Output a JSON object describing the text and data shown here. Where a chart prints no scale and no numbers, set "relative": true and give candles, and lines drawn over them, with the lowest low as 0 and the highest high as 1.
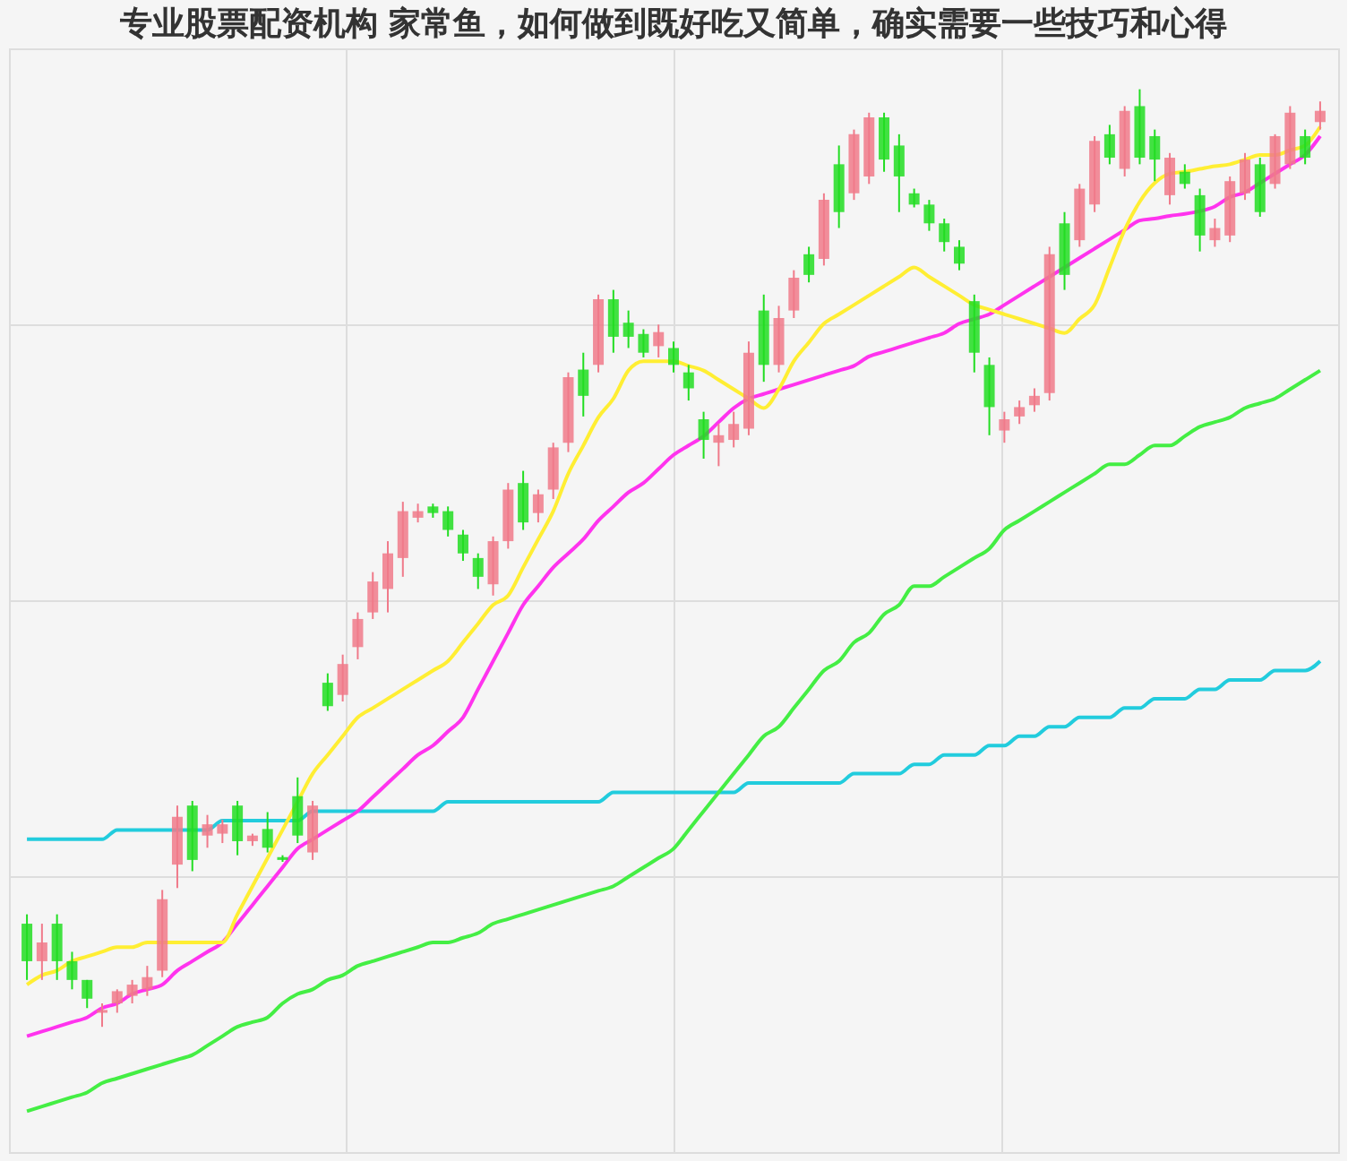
{
  "chart_data": {
    "type": "candlestick",
    "title": "专业股票配资机构 家常鱼，如何做到既好吃又简单，确实需要一些技巧和心得",
    "relative": true,
    "grid": true,
    "categories": [
      null,
      null,
      null,
      null,
      null,
      null,
      null,
      null,
      null,
      null,
      null,
      null,
      null,
      null,
      null,
      null,
      null,
      null,
      null,
      null,
      null,
      null,
      null,
      null,
      null,
      null,
      null,
      null,
      null,
      null,
      null,
      null,
      null,
      null,
      null,
      null,
      null,
      null,
      null,
      null,
      null,
      null,
      null,
      null,
      null,
      null,
      null,
      null,
      null,
      null,
      null,
      null,
      null,
      null,
      null,
      null,
      null,
      null,
      null,
      null,
      null,
      null,
      null,
      null,
      null,
      null,
      null,
      null,
      null,
      null,
      null,
      null,
      null,
      null,
      null,
      null,
      null,
      null,
      null,
      null,
      null,
      null,
      null,
      null,
      null,
      null,
      null
    ],
    "ohlc": [
      [
        0.11,
        0.12,
        0.05,
        0.07
      ],
      [
        0.07,
        0.11,
        0.05,
        0.09
      ],
      [
        0.11,
        0.12,
        0.05,
        0.07
      ],
      [
        0.07,
        0.08,
        0.04,
        0.05
      ],
      [
        0.05,
        0.05,
        0.02,
        0.03
      ],
      [
        0.015,
        0.025,
        0,
        0.018
      ],
      [
        0.025,
        0.04,
        0.015,
        0.038
      ],
      [
        0.033,
        0.05,
        0.025,
        0.045
      ],
      [
        0.04,
        0.065,
        0.033,
        0.053
      ],
      [
        0.06,
        0.146,
        0.053,
        0.136
      ],
      [
        0.173,
        0.236,
        0.148,
        0.224
      ],
      [
        0.236,
        0.241,
        0.166,
        0.178
      ],
      [
        0.204,
        0.226,
        0.191,
        0.216
      ],
      [
        0.206,
        0.221,
        0.196,
        0.216
      ],
      [
        0.236,
        0.241,
        0.183,
        0.198
      ],
      [
        0.198,
        0.206,
        0.193,
        0.204
      ],
      [
        0.211,
        0.229,
        0.186,
        0.191
      ],
      [
        0.181,
        0.183,
        0.176,
        0.178
      ],
      [
        0.246,
        0.266,
        0.196,
        0.204
      ],
      [
        0.186,
        0.241,
        0.178,
        0.236
      ],
      [
        0.367,
        0.377,
        0.337,
        0.342
      ],
      [
        0.354,
        0.397,
        0.347,
        0.387
      ],
      [
        0.405,
        0.442,
        0.392,
        0.435
      ],
      [
        0.442,
        0.485,
        0.435,
        0.475
      ],
      [
        0.467,
        0.518,
        0.442,
        0.505
      ],
      [
        0.5,
        0.56,
        0.48,
        0.55
      ],
      [
        0.543,
        0.558,
        0.538,
        0.55
      ],
      [
        0.555,
        0.558,
        0.543,
        0.548
      ],
      [
        0.55,
        0.555,
        0.523,
        0.53
      ],
      [
        0.525,
        0.53,
        0.497,
        0.505
      ],
      [
        0.5,
        0.505,
        0.467,
        0.48
      ],
      [
        0.472,
        0.523,
        0.46,
        0.518
      ],
      [
        0.518,
        0.58,
        0.51,
        0.573
      ],
      [
        0.58,
        0.593,
        0.53,
        0.538
      ],
      [
        0.548,
        0.573,
        0.538,
        0.568
      ],
      [
        0.573,
        0.623,
        0.563,
        0.618
      ],
      [
        0.623,
        0.698,
        0.613,
        0.693
      ],
      [
        0.701,
        0.719,
        0.651,
        0.673
      ],
      [
        0.706,
        0.781,
        0.698,
        0.776
      ],
      [
        0.776,
        0.786,
        0.719,
        0.736
      ],
      [
        0.751,
        0.764,
        0.724,
        0.736
      ],
      [
        0.739,
        0.744,
        0.714,
        0.719
      ],
      [
        0.726,
        0.749,
        0.714,
        0.741
      ],
      [
        0.724,
        0.731,
        0.698,
        0.706
      ],
      [
        0.698,
        0.706,
        0.668,
        0.681
      ],
      [
        0.648,
        0.656,
        0.606,
        0.626
      ],
      [
        0.623,
        0.643,
        0.598,
        0.631
      ],
      [
        0.626,
        0.656,
        0.618,
        0.643
      ],
      [
        0.638,
        0.731,
        0.631,
        0.719
      ],
      [
        0.764,
        0.781,
        0.688,
        0.706
      ],
      [
        0.706,
        0.769,
        0.698,
        0.756
      ],
      [
        0.764,
        0.807,
        0.756,
        0.799
      ],
      [
        0.824,
        0.832,
        0.794,
        0.802
      ],
      [
        0.819,
        0.889,
        0.812,
        0.882
      ],
      [
        0.92,
        0.94,
        0.852,
        0.869
      ],
      [
        0.889,
        0.957,
        0.882,
        0.952
      ],
      [
        0.907,
        0.975,
        0.899,
        0.97
      ],
      [
        0.97,
        0.975,
        0.912,
        0.925
      ],
      [
        0.94,
        0.952,
        0.869,
        0.907
      ],
      [
        0.889,
        0.894,
        0.874,
        0.877
      ],
      [
        0.877,
        0.882,
        0.849,
        0.857
      ],
      [
        0.857,
        0.862,
        0.827,
        0.837
      ],
      [
        0.832,
        0.839,
        0.807,
        0.814
      ],
      [
        0.774,
        0.781,
        0.698,
        0.719
      ],
      [
        0.706,
        0.714,
        0.631,
        0.661
      ],
      [
        0.636,
        0.656,
        0.623,
        0.648
      ],
      [
        0.651,
        0.668,
        0.643,
        0.661
      ],
      [
        0.663,
        0.681,
        0.656,
        0.673
      ],
      [
        0.676,
        0.832,
        0.668,
        0.824
      ],
      [
        0.857,
        0.869,
        0.786,
        0.802
      ],
      [
        0.839,
        0.899,
        0.832,
        0.894
      ],
      [
        0.877,
        0.95,
        0.869,
        0.945
      ],
      [
        0.952,
        0.962,
        0.92,
        0.927
      ],
      [
        0.915,
        0.982,
        0.907,
        0.977
      ],
      [
        0.982,
        1,
        0.92,
        0.927
      ],
      [
        0.95,
        0.957,
        0.902,
        0.925
      ],
      [
        0.887,
        0.932,
        0.877,
        0.927
      ],
      [
        0.912,
        0.92,
        0.894,
        0.899
      ],
      [
        0.887,
        0.894,
        0.827,
        0.844
      ],
      [
        0.839,
        0.862,
        0.832,
        0.852
      ],
      [
        0.844,
        0.907,
        0.837,
        0.902
      ],
      [
        0.889,
        0.932,
        0.882,
        0.925
      ],
      [
        0.92,
        0.927,
        0.864,
        0.869
      ],
      [
        0.899,
        0.952,
        0.894,
        0.95
      ],
      [
        0.92,
        0.982,
        0.915,
        0.975
      ],
      [
        0.95,
        0.957,
        0.92,
        0.927
      ],
      [
        0.965,
        0.987,
        0.957,
        0.977
      ]
    ],
    "colors": [
      "#22dd22",
      "#f07a8a",
      "#22dd22",
      "#22dd22",
      "#22dd22",
      "#f07a8a",
      "#f07a8a",
      "#f07a8a",
      "#f07a8a",
      "#f07a8a",
      "#f07a8a",
      "#22dd22",
      "#f07a8a",
      "#f07a8a",
      "#22dd22",
      "#f07a8a",
      "#22dd22",
      "#22dd22",
      "#22dd22",
      "#f07a8a",
      "#22dd22",
      "#f07a8a",
      "#f07a8a",
      "#f07a8a",
      "#f07a8a",
      "#f07a8a",
      "#f07a8a",
      "#22dd22",
      "#22dd22",
      "#22dd22",
      "#22dd22",
      "#f07a8a",
      "#f07a8a",
      "#22dd22",
      "#f07a8a",
      "#f07a8a",
      "#f07a8a",
      "#22dd22",
      "#f07a8a",
      "#22dd22",
      "#22dd22",
      "#22dd22",
      "#f07a8a",
      "#22dd22",
      "#22dd22",
      "#22dd22",
      "#f07a8a",
      "#f07a8a",
      "#f07a8a",
      "#22dd22",
      "#f07a8a",
      "#f07a8a",
      "#22dd22",
      "#f07a8a",
      "#22dd22",
      "#f07a8a",
      "#f07a8a",
      "#22dd22",
      "#22dd22",
      "#22dd22",
      "#22dd22",
      "#22dd22",
      "#22dd22",
      "#22dd22",
      "#22dd22",
      "#f07a8a",
      "#f07a8a",
      "#f07a8a",
      "#f07a8a",
      "#22dd22",
      "#f07a8a",
      "#f07a8a",
      "#22dd22",
      "#f07a8a",
      "#22dd22",
      "#22dd22",
      "#f07a8a",
      "#22dd22",
      "#22dd22",
      "#f07a8a",
      "#f07a8a",
      "#f07a8a",
      "#22dd22",
      "#f07a8a",
      "#f07a8a",
      "#22dd22",
      "#f07a8a"
    ],
    "series": [
      {
        "type": "line",
        "color": "#22ccdd",
        "values": [
          0.2,
          0.2,
          0.2,
          0.2,
          0.2,
          0.2,
          0.21,
          0.21,
          0.21,
          0.21,
          0.21,
          0.21,
          0.21,
          0.22,
          0.22,
          0.22,
          0.22,
          0.22,
          0.22,
          0.23,
          0.23,
          0.23,
          0.23,
          0.23,
          0.23,
          0.23,
          0.23,
          0.23,
          0.24,
          0.24,
          0.24,
          0.24,
          0.24,
          0.24,
          0.24,
          0.24,
          0.24,
          0.24,
          0.24,
          0.25,
          0.25,
          0.25,
          0.25,
          0.25,
          0.25,
          0.25,
          0.25,
          0.25,
          0.26,
          0.26,
          0.26,
          0.26,
          0.26,
          0.26,
          0.26,
          0.27,
          0.27,
          0.27,
          0.27,
          0.28,
          0.28,
          0.29,
          0.29,
          0.29,
          0.3,
          0.3,
          0.31,
          0.31,
          0.32,
          0.32,
          0.33,
          0.33,
          0.33,
          0.34,
          0.34,
          0.35,
          0.35,
          0.35,
          0.36,
          0.36,
          0.37,
          0.37,
          0.37,
          0.38,
          0.38,
          0.38,
          0.39
        ]
      },
      {
        "type": "line",
        "color": "#44ee44",
        "values": [
          -0.09,
          -0.085,
          -0.08,
          -0.075,
          -0.07,
          -0.06,
          -0.055,
          -0.05,
          -0.045,
          -0.04,
          -0.035,
          -0.03,
          -0.02,
          -0.01,
          0,
          0.005,
          0.01,
          0.025,
          0.035,
          0.04,
          0.05,
          0.055,
          0.065,
          0.07,
          0.075,
          0.08,
          0.085,
          0.09,
          0.09,
          0.095,
          0.1,
          0.11,
          0.115,
          0.12,
          0.125,
          0.13,
          0.135,
          0.14,
          0.145,
          0.15,
          0.16,
          0.17,
          0.18,
          0.19,
          0.21,
          0.23,
          0.25,
          0.27,
          0.29,
          0.31,
          0.32,
          0.34,
          0.36,
          0.38,
          0.39,
          0.41,
          0.42,
          0.44,
          0.45,
          0.47,
          0.47,
          0.48,
          0.49,
          0.5,
          0.51,
          0.53,
          0.54,
          0.55,
          0.56,
          0.57,
          0.58,
          0.59,
          0.6,
          0.6,
          0.61,
          0.62,
          0.62,
          0.63,
          0.64,
          0.645,
          0.65,
          0.66,
          0.665,
          0.67,
          0.68,
          0.69,
          0.7
        ]
      },
      {
        "type": "line",
        "color": "#ff33ee",
        "values": [
          -0.01,
          -0.005,
          0,
          0.005,
          0.01,
          0.02,
          0.025,
          0.035,
          0.04,
          0.045,
          0.06,
          0.07,
          0.08,
          0.09,
          0.11,
          0.13,
          0.15,
          0.17,
          0.19,
          0.2,
          0.21,
          0.22,
          0.23,
          0.245,
          0.26,
          0.275,
          0.29,
          0.3,
          0.315,
          0.33,
          0.36,
          0.39,
          0.42,
          0.45,
          0.47,
          0.49,
          0.505,
          0.52,
          0.54,
          0.555,
          0.57,
          0.58,
          0.595,
          0.61,
          0.62,
          0.63,
          0.645,
          0.66,
          0.67,
          0.675,
          0.68,
          0.685,
          0.69,
          0.695,
          0.7,
          0.705,
          0.715,
          0.72,
          0.725,
          0.73,
          0.735,
          0.74,
          0.75,
          0.755,
          0.76,
          0.77,
          0.78,
          0.79,
          0.8,
          0.81,
          0.82,
          0.83,
          0.84,
          0.85,
          0.86,
          0.862,
          0.865,
          0.867,
          0.87,
          0.875,
          0.885,
          0.89,
          0.9,
          0.91,
          0.92,
          0.93,
          0.95
        ]
      },
      {
        "type": "line",
        "color": "#ffee33",
        "values": [
          0.045,
          0.055,
          0.06,
          0.07,
          0.075,
          0.08,
          0.085,
          0.085,
          0.09,
          0.09,
          0.09,
          0.09,
          0.09,
          0.09,
          0.12,
          0.15,
          0.18,
          0.21,
          0.24,
          0.27,
          0.29,
          0.31,
          0.33,
          0.34,
          0.35,
          0.36,
          0.37,
          0.38,
          0.39,
          0.41,
          0.43,
          0.45,
          0.46,
          0.49,
          0.52,
          0.55,
          0.59,
          0.62,
          0.65,
          0.67,
          0.7,
          0.71,
          0.71,
          0.71,
          0.705,
          0.7,
          0.69,
          0.68,
          0.67,
          0.66,
          0.68,
          0.71,
          0.73,
          0.75,
          0.76,
          0.77,
          0.78,
          0.79,
          0.8,
          0.81,
          0.8,
          0.79,
          0.78,
          0.77,
          0.765,
          0.76,
          0.755,
          0.75,
          0.745,
          0.74,
          0.755,
          0.77,
          0.81,
          0.85,
          0.88,
          0.9,
          0.91,
          0.912,
          0.915,
          0.918,
          0.92,
          0.925,
          0.93,
          0.93,
          0.935,
          0.94,
          0.96
        ]
      }
    ]
  }
}
